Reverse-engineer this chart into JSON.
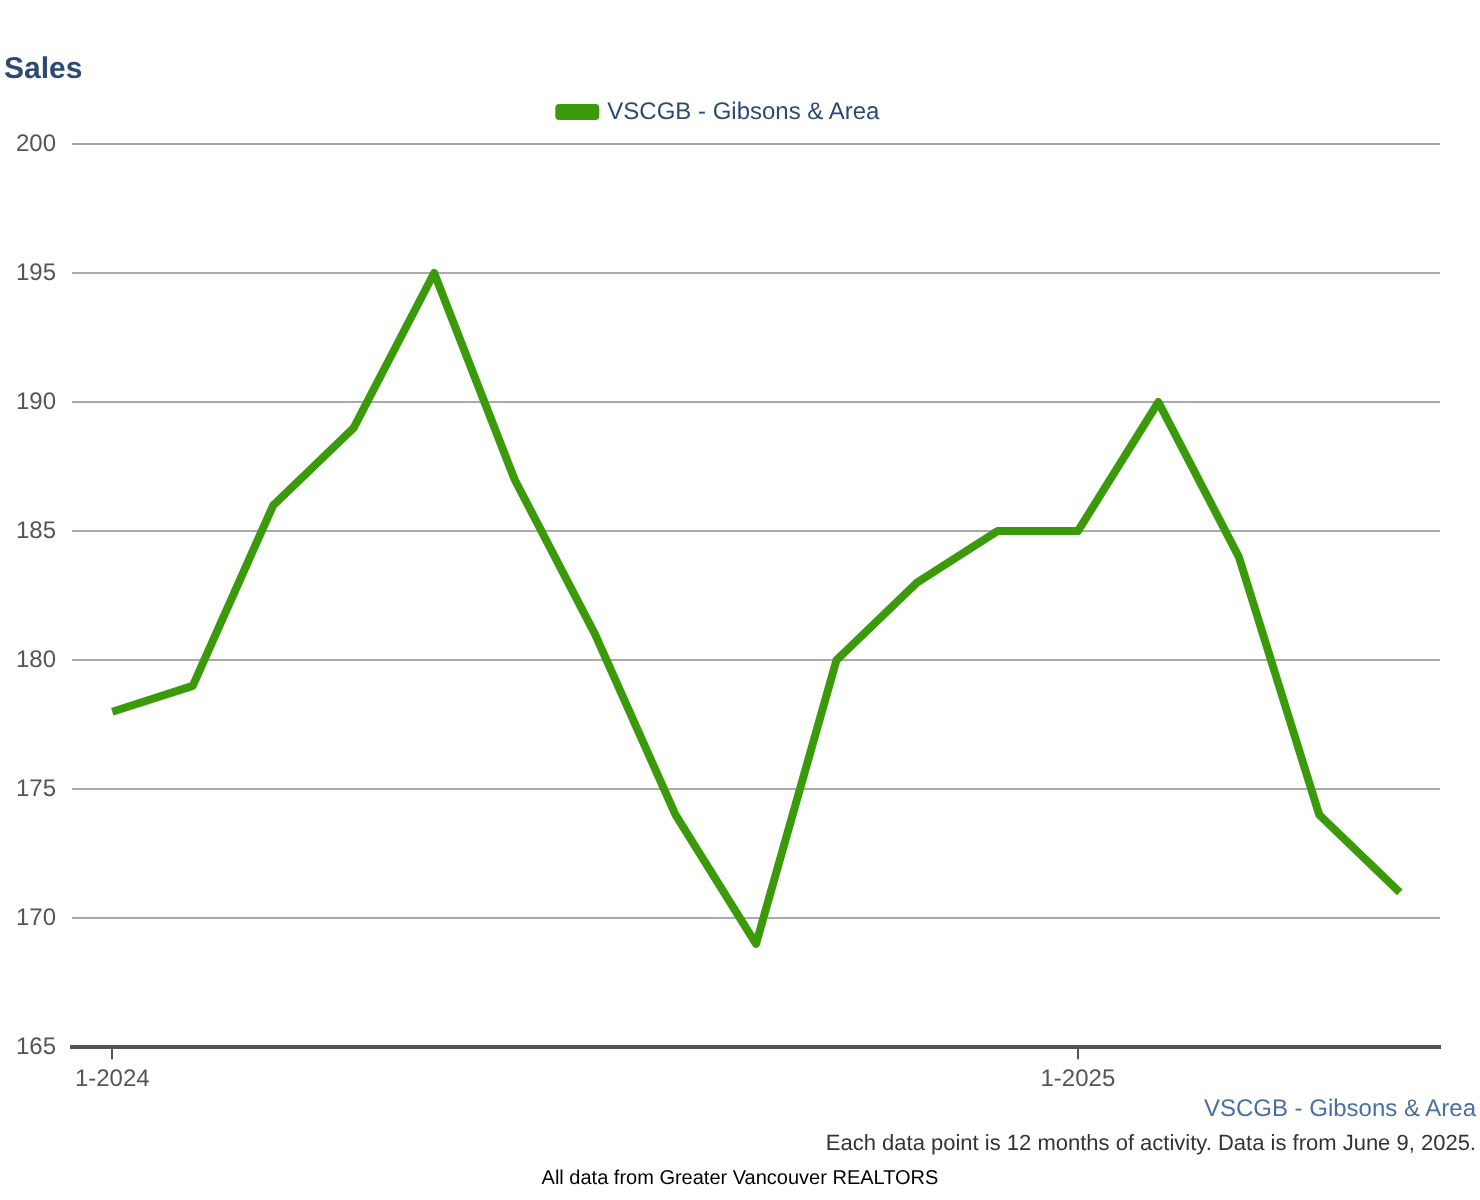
{
  "chart_data": {
    "type": "line",
    "title": "Sales",
    "categories": [
      "1-2024",
      null,
      null,
      null,
      null,
      null,
      null,
      null,
      null,
      null,
      null,
      null,
      "1-2025",
      null,
      null,
      null,
      null
    ],
    "series": [
      {
        "name": "VSCGB - Gibsons & Area",
        "color": "#3a9a0a",
        "values": [
          178,
          179,
          186,
          189,
          195,
          187,
          181,
          174,
          169,
          180,
          183,
          185,
          185,
          190,
          184,
          174,
          171
        ]
      }
    ],
    "ylim": [
      165,
      200
    ],
    "yticks": [
      165,
      170,
      175,
      180,
      185,
      190,
      195,
      200
    ],
    "grid": "y",
    "legend": "top",
    "marker": "none",
    "line_style": "solid",
    "annotations": [
      "VSCGB - Gibsons & Area",
      "Each data point is 12 months of activity. Data is from June 9, 2025.",
      "All data from Greater Vancouver REALTORS"
    ]
  }
}
